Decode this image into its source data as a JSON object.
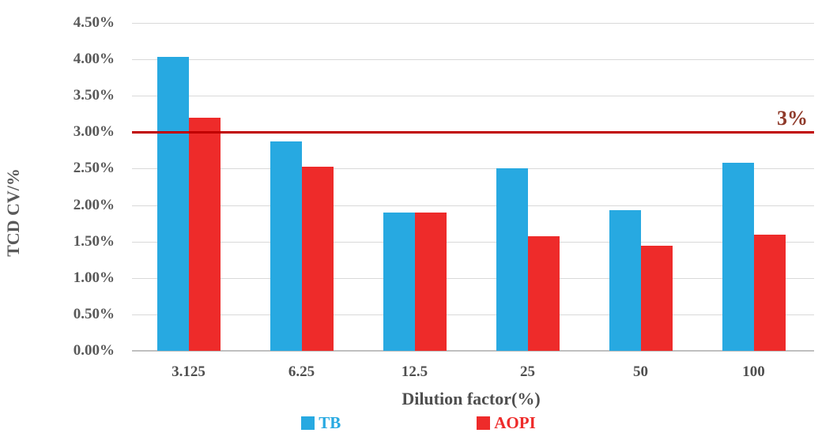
{
  "chart_data": {
    "type": "bar",
    "title": "",
    "xlabel": "Dilution factor(%)",
    "ylabel": "TCD CV/%",
    "categories": [
      "3.125",
      "6.25",
      "12.5",
      "25",
      "50",
      "100"
    ],
    "series": [
      {
        "name": "TB",
        "color": "#27A9E1",
        "values": [
          4.03,
          2.87,
          1.9,
          2.51,
          1.93,
          2.58
        ]
      },
      {
        "name": "AOPI",
        "color": "#EE2B2A",
        "values": [
          3.2,
          2.53,
          1.9,
          1.57,
          1.44,
          1.59
        ]
      }
    ],
    "y_axis": {
      "min": 0,
      "max": 4.5,
      "step": 0.5,
      "tick_labels": [
        "0.00%",
        "0.50%",
        "1.00%",
        "1.50%",
        "2.00%",
        "2.50%",
        "3.00%",
        "3.50%",
        "4.00%",
        "4.50%"
      ]
    },
    "ylim": [
      0,
      4.5
    ],
    "grid": true,
    "ref_line": {
      "value": 3.0,
      "label": "3%",
      "line_color": "#C00000",
      "label_color": "#8F3A2A"
    },
    "legend": [
      {
        "label": "TB",
        "color": "#27A9E1"
      },
      {
        "label": "AOPI",
        "color": "#EE2B2A"
      }
    ],
    "legend_position": "bottom"
  },
  "colors": {
    "tick_text": "#595959",
    "gridline": "#D9D9D9",
    "axis_line": "#BFBFBF"
  }
}
